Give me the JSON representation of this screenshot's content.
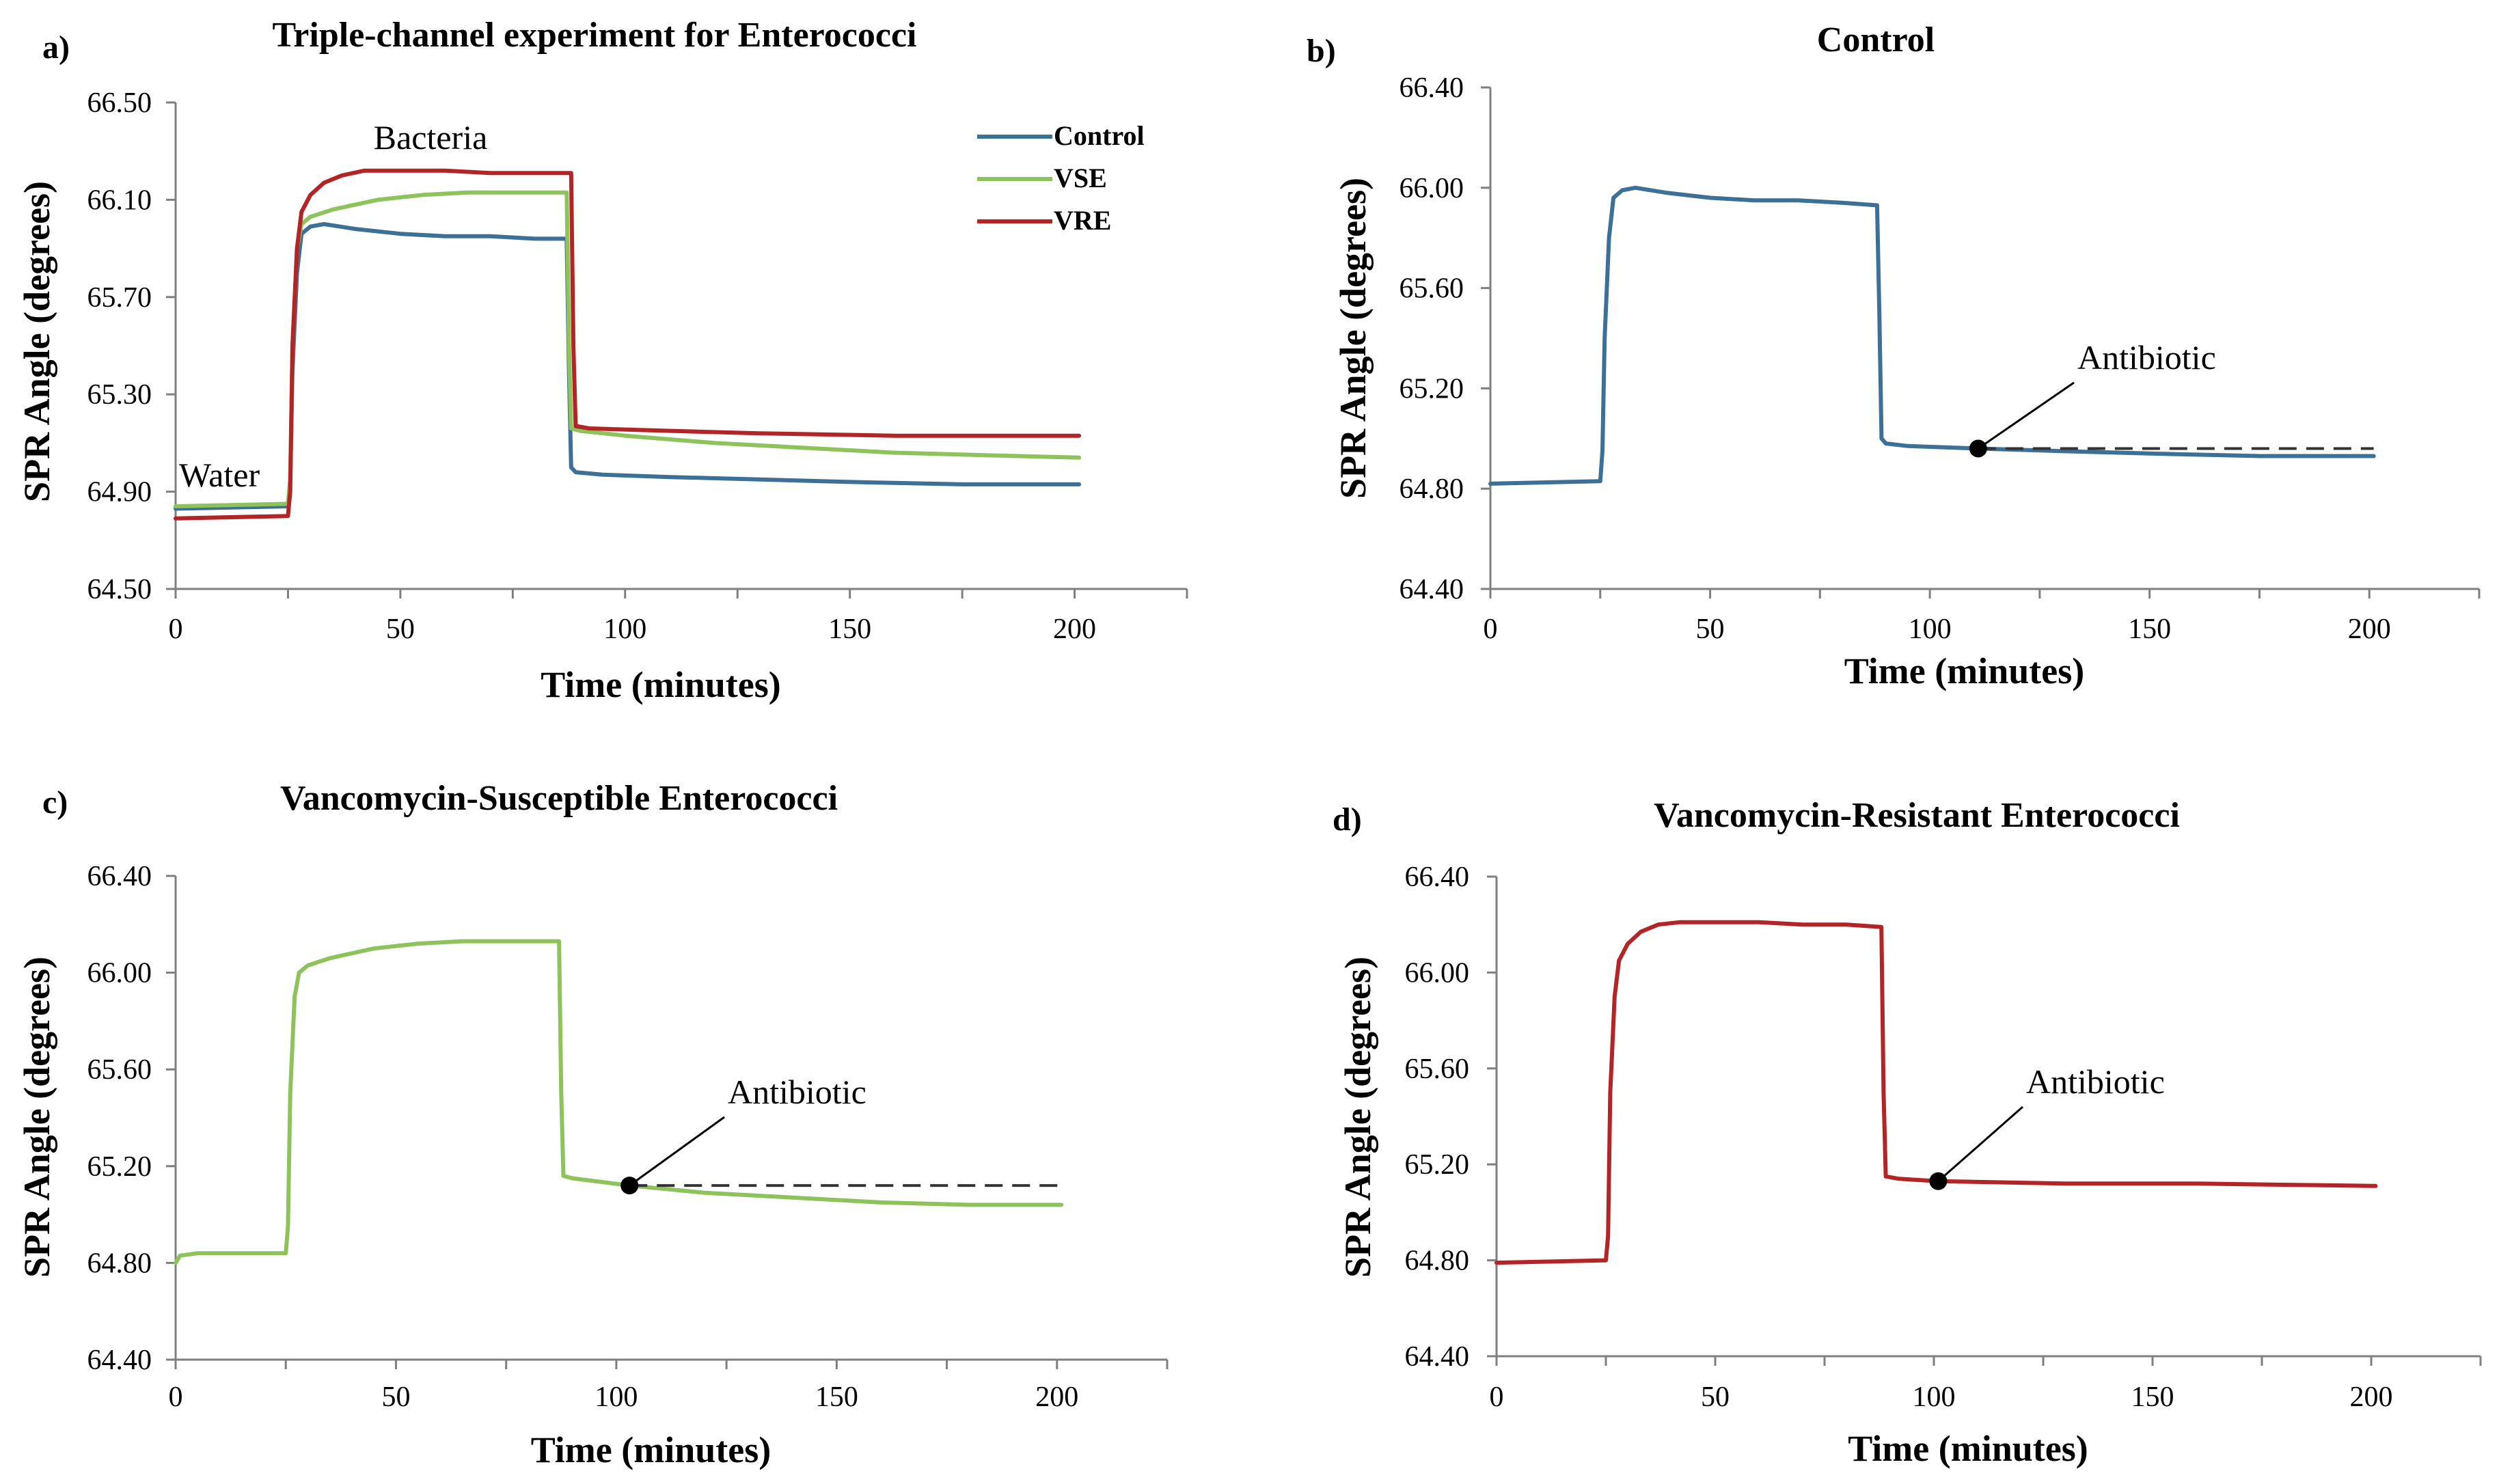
{
  "chart_data": [
    {
      "panel": "a)",
      "type": "line",
      "title": "Triple-channel  experiment  for Enterococci",
      "xlabel": "Time (minutes)",
      "ylabel": "SPR Angle (degrees)",
      "xlim": [
        0,
        225
      ],
      "ylim": [
        64.5,
        66.5
      ],
      "xticks": [
        "0",
        "50",
        "100",
        "150",
        "200"
      ],
      "yticks": [
        "64.50",
        "64.90",
        "65.30",
        "65.70",
        "66.10",
        "66.50"
      ],
      "legend": [
        "Control",
        "VSE",
        "VRE"
      ],
      "legend_position": "top-right",
      "annotations": [
        "Bacteria",
        "Water"
      ],
      "series": [
        {
          "name": "Control",
          "color": "#3d7096",
          "x": [
            0,
            25,
            25.5,
            26,
            27,
            28,
            30,
            33,
            40,
            50,
            60,
            70,
            80,
            87,
            87.5,
            88,
            89,
            95,
            110,
            130,
            150,
            175,
            201
          ],
          "y": [
            64.83,
            64.84,
            64.95,
            65.4,
            65.8,
            65.96,
            65.99,
            66.0,
            65.98,
            65.96,
            65.95,
            65.95,
            65.94,
            65.94,
            65.4,
            65.0,
            64.98,
            64.97,
            64.96,
            64.95,
            64.94,
            64.93,
            64.93
          ]
        },
        {
          "name": "VSE",
          "color": "#8ec25a",
          "x": [
            0,
            25,
            25.5,
            26,
            27,
            28,
            30,
            35,
            45,
            55,
            65,
            75,
            87,
            87.5,
            88,
            90,
            100,
            120,
            140,
            160,
            180,
            201
          ],
          "y": [
            64.84,
            64.85,
            64.95,
            65.5,
            65.9,
            66.0,
            66.03,
            66.06,
            66.1,
            66.12,
            66.13,
            66.13,
            66.13,
            65.5,
            65.16,
            65.15,
            65.13,
            65.1,
            65.08,
            65.06,
            65.05,
            65.04
          ]
        },
        {
          "name": "VRE",
          "color": "#b32424",
          "x": [
            0,
            25,
            25.5,
            26,
            27,
            28,
            30,
            33,
            37,
            42,
            50,
            60,
            70,
            80,
            88,
            88.5,
            89,
            92,
            110,
            130,
            160,
            201
          ],
          "y": [
            64.79,
            64.8,
            64.9,
            65.5,
            65.9,
            66.05,
            66.12,
            66.17,
            66.2,
            66.22,
            66.22,
            66.22,
            66.21,
            66.21,
            66.21,
            65.5,
            65.17,
            65.16,
            65.15,
            65.14,
            65.13,
            65.13
          ]
        }
      ]
    },
    {
      "panel": "b)",
      "type": "line",
      "title": "Control",
      "xlabel": "Time (minutes)",
      "ylabel": "SPR Angle (degrees)",
      "xlim": [
        0,
        225
      ],
      "ylim": [
        64.4,
        66.4
      ],
      "xticks": [
        "0",
        "50",
        "100",
        "150",
        "200"
      ],
      "yticks": [
        "64.40",
        "64.80",
        "65.20",
        "65.60",
        "66.00",
        "66.40"
      ],
      "annotation": "Antibiotic",
      "antibiotic_point": {
        "x": 111,
        "y": 64.96
      },
      "baseline_end_x": 201,
      "series": [
        {
          "name": "Control",
          "color": "#3d7096",
          "x": [
            0,
            25,
            25.5,
            26,
            27,
            28,
            30,
            33,
            40,
            50,
            60,
            70,
            80,
            88,
            88.5,
            89,
            90,
            95,
            111,
            130,
            150,
            175,
            201
          ],
          "y": [
            64.82,
            64.83,
            64.95,
            65.4,
            65.8,
            65.96,
            65.99,
            66.0,
            65.98,
            65.96,
            65.95,
            65.95,
            65.94,
            65.93,
            65.5,
            65.0,
            64.98,
            64.97,
            64.96,
            64.95,
            64.94,
            64.93,
            64.93
          ]
        }
      ]
    },
    {
      "panel": "c)",
      "type": "line",
      "title": "Vancomycin-Susceptible Enterococci",
      "xlabel": "Time (minutes)",
      "ylabel": "SPR Angle (degrees)",
      "xlim": [
        0,
        225
      ],
      "ylim": [
        64.4,
        66.4
      ],
      "xticks": [
        "0",
        "50",
        "100",
        "150",
        "200"
      ],
      "yticks": [
        "64.40",
        "64.80",
        "65.20",
        "65.60",
        "66.00",
        "66.40"
      ],
      "annotation": "Antibiotic",
      "antibiotic_point": {
        "x": 103,
        "y": 65.12
      },
      "baseline_end_x": 201,
      "series": [
        {
          "name": "VSE",
          "color": "#8ec25a",
          "x": [
            0,
            1,
            5,
            25,
            25.5,
            26,
            27,
            28,
            30,
            35,
            45,
            55,
            65,
            75,
            87,
            87.5,
            88,
            90,
            103,
            120,
            140,
            160,
            180,
            201
          ],
          "y": [
            64.8,
            64.83,
            64.84,
            64.84,
            64.95,
            65.5,
            65.9,
            66.0,
            66.03,
            66.06,
            66.1,
            66.12,
            66.13,
            66.13,
            66.13,
            65.5,
            65.16,
            65.15,
            65.12,
            65.09,
            65.07,
            65.05,
            65.04,
            65.04
          ]
        }
      ]
    },
    {
      "panel": "d)",
      "type": "line",
      "title": "Vancomycin-Resistant Enterococci",
      "xlabel": "Time (minutes)",
      "ylabel": "SPR Angle (degrees)",
      "xlim": [
        0,
        225
      ],
      "ylim": [
        64.4,
        66.4
      ],
      "xticks": [
        "0",
        "50",
        "100",
        "150",
        "200"
      ],
      "yticks": [
        "64.40",
        "64.80",
        "65.20",
        "65.60",
        "66.00",
        "66.40"
      ],
      "annotation": "Antibiotic",
      "antibiotic_point": {
        "x": 101,
        "y": 65.13
      },
      "series": [
        {
          "name": "VRE",
          "color": "#b32424",
          "x": [
            0,
            25,
            25.5,
            26,
            27,
            28,
            30,
            33,
            37,
            42,
            50,
            60,
            70,
            80,
            88,
            88.5,
            89,
            92,
            101,
            130,
            160,
            201
          ],
          "y": [
            64.79,
            64.8,
            64.9,
            65.5,
            65.9,
            66.05,
            66.12,
            66.17,
            66.2,
            66.21,
            66.21,
            66.21,
            66.2,
            66.2,
            66.19,
            65.5,
            65.15,
            65.14,
            65.13,
            65.12,
            65.12,
            65.11
          ]
        }
      ]
    }
  ]
}
